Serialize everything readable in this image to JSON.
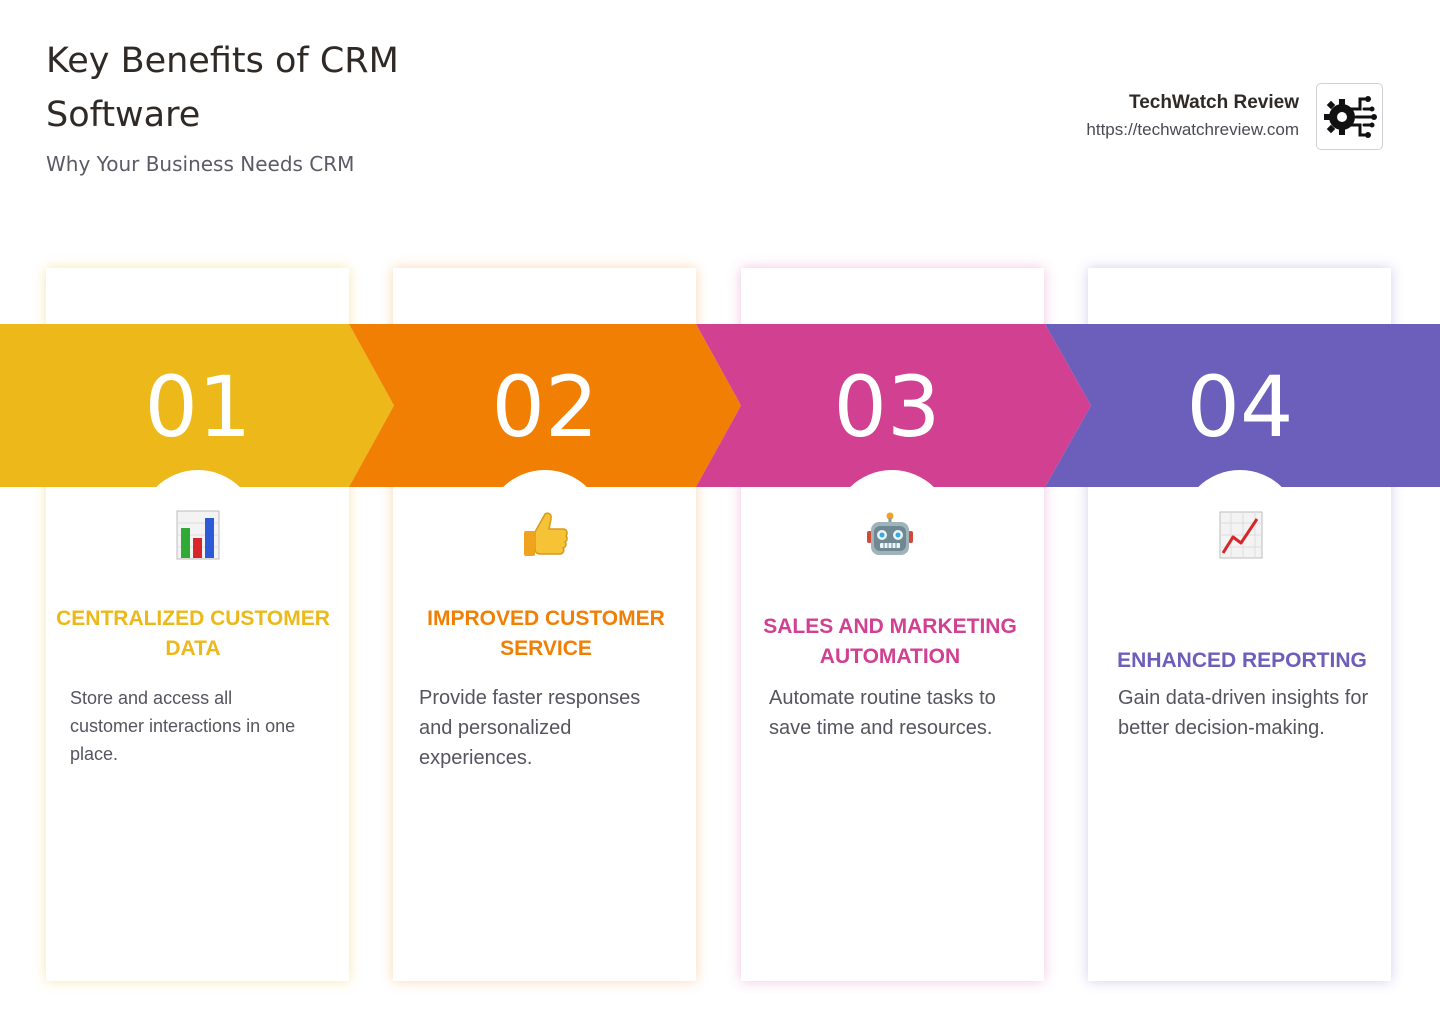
{
  "header": {
    "title": "Key Benefits of CRM Software",
    "subtitle": "Why Your Business Needs CRM"
  },
  "brand": {
    "name": "TechWatch Review",
    "url": "https://techwatchreview.com",
    "logo_icon": "gear-circuit-icon"
  },
  "steps": [
    {
      "number": "01",
      "color": "#ECB81A",
      "icon": "bar-chart-icon",
      "title": "CENTRALIZED CUSTOMER DATA",
      "description": "Store and access all customer interactions in one place."
    },
    {
      "number": "02",
      "color": "#F07F04",
      "icon": "thumbs-up-icon",
      "title": "IMPROVED CUSTOMER SERVICE",
      "description": "Provide faster responses and personalized experiences."
    },
    {
      "number": "03",
      "color": "#D14091",
      "icon": "robot-icon",
      "title": "SALES AND MARKETING AUTOMATION",
      "description": "Automate routine tasks to save time and resources."
    },
    {
      "number": "04",
      "color": "#6C5EBB",
      "icon": "trending-chart-icon",
      "title": "ENHANCED REPORTING",
      "description": "Gain data-driven insights for better decision-making."
    }
  ]
}
